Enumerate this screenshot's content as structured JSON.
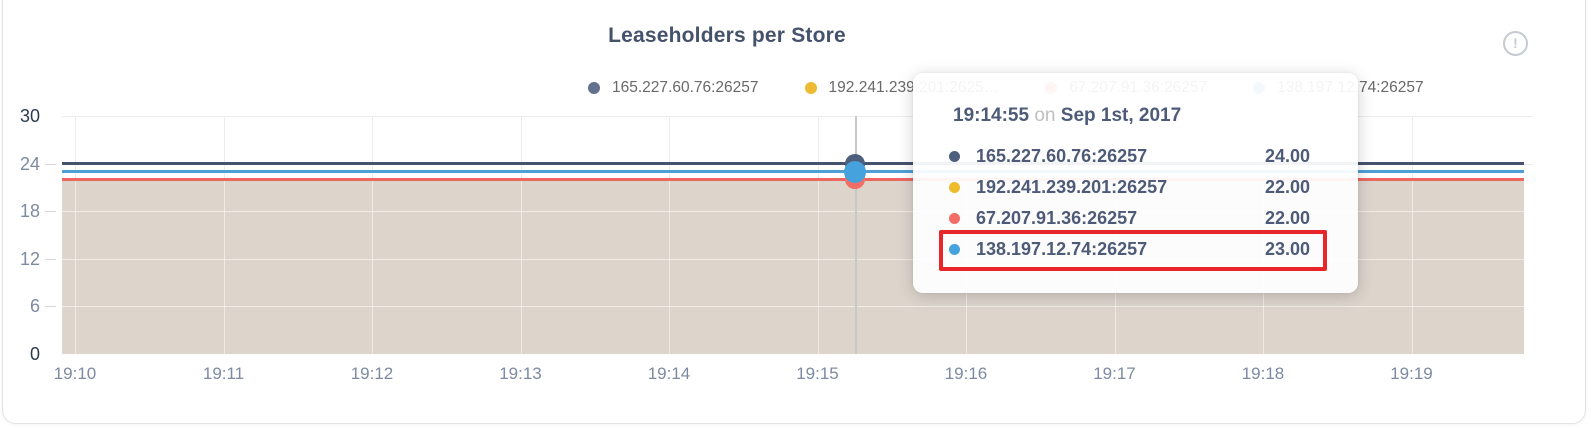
{
  "header": {
    "title": "Leaseholders per Store",
    "info_icon": "!"
  },
  "legend": {
    "items": [
      {
        "label": "165.227.60.76:26257",
        "color": "#63718c"
      },
      {
        "label": "192.241.239.201:2625…",
        "color": "#edbb33"
      },
      {
        "label": "67.207.91.36:26257",
        "color": "#f16d66"
      },
      {
        "label": "138.197.12.74:26257",
        "color": "#49a2da"
      }
    ]
  },
  "chart_data": {
    "type": "line",
    "title": "Leaseholders per Store",
    "xlabel": "",
    "ylabel": "",
    "ylim": [
      0,
      30
    ],
    "y_ticks": [
      30,
      24,
      18,
      12,
      6,
      0
    ],
    "y_ticks_emphasized": [
      30,
      0
    ],
    "x_tick_labels": [
      "19:10",
      "19:11",
      "19:12",
      "19:13",
      "19:14",
      "19:15",
      "19:16",
      "19:17",
      "19:18",
      "19:19"
    ],
    "grid": "on",
    "legend_position": "top",
    "area_fill_color": "#ddd5cc",
    "series": [
      {
        "name": "165.227.60.76:26257",
        "color": "#46536e",
        "dot_color": "#4e5f7e",
        "value_constant": 24
      },
      {
        "name": "192.241.239.201:26257",
        "color": "#edbb33",
        "dot_color": "#eebb2d",
        "value_constant": 22
      },
      {
        "name": "67.207.91.36:26257",
        "color": "#ec6760",
        "dot_color": "#f26d65",
        "value_constant": 22
      },
      {
        "name": "138.197.12.74:26257",
        "color": "#4f9fd7",
        "dot_color": "#45a2dc",
        "value_constant": 23
      }
    ],
    "hover_point": {
      "time": "19:14:55",
      "values": [
        24,
        22,
        22,
        23
      ]
    }
  },
  "tooltip": {
    "time": "19:14:55",
    "conjunction": "on",
    "date": "Sep 1st, 2017",
    "rows": [
      {
        "label": "165.227.60.76:26257",
        "value": "24.00",
        "color": "#4e5f7e"
      },
      {
        "label": "192.241.239.201:26257",
        "value": "22.00",
        "color": "#eebb2d"
      },
      {
        "label": "67.207.91.36:26257",
        "value": "22.00",
        "color": "#f26d65"
      },
      {
        "label": "138.197.12.74:26257",
        "value": "23.00",
        "color": "#45a2dc"
      }
    ],
    "highlighted_row_index": 3,
    "highlight_color": "#e8262a"
  }
}
